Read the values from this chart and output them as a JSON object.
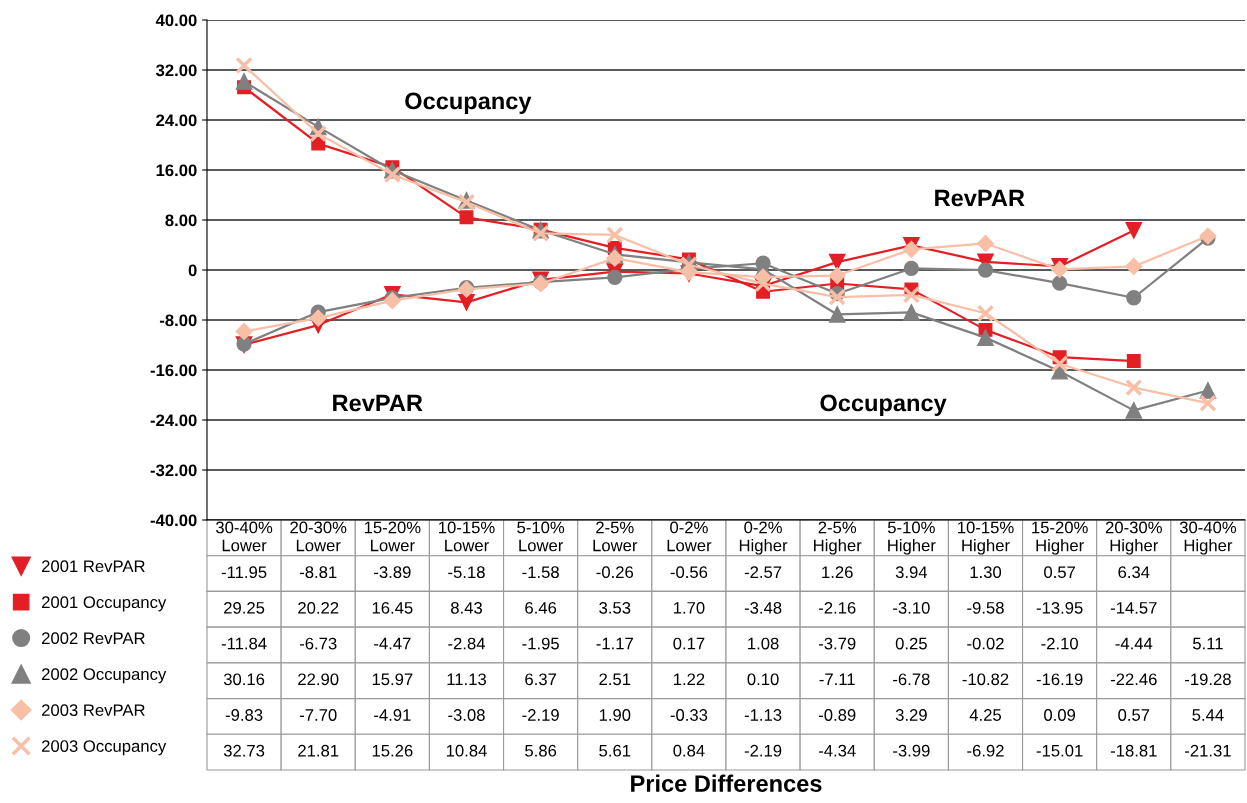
{
  "chart_data": {
    "type": "line",
    "categories": [
      "30-40%\nLower",
      "20-30%\nLower",
      "15-20%\nLower",
      "10-15%\nLower",
      "5-10%\nLower",
      "2-5%\nLower",
      "0-2%\nLower",
      "0-2%\nHigher",
      "2-5%\nHigher",
      "5-10%\nHigher",
      "10-15%\nHigher",
      "15-20%\nHigher",
      "20-30%\nHigher",
      "30-40%\nHigher"
    ],
    "legend": "bottom left",
    "ylim": [
      -40,
      40
    ],
    "yticks": [
      {
        "value": -40,
        "label": "-40.00"
      },
      {
        "value": -32,
        "label": "-32.00"
      },
      {
        "value": -24,
        "label": "-24.00"
      },
      {
        "value": -16,
        "label": "-16.00"
      },
      {
        "value": -8,
        "label": "-8.00"
      },
      {
        "value": 0,
        "label": "0"
      },
      {
        "value": 8,
        "label": "8.00"
      },
      {
        "value": 16,
        "label": "16.00"
      },
      {
        "value": 24,
        "label": "24.00"
      },
      {
        "value": 32,
        "label": "32.00"
      },
      {
        "value": 40,
        "label": "40.00"
      }
    ],
    "grid": "y",
    "annotations": [
      "Occupancy",
      "RevPAR",
      "RevPAR",
      "Occupancy",
      "Price Differences"
    ],
    "series": [
      {
        "name": "2001 RevPAR",
        "color": "#e31e24",
        "marker": "triangle_down",
        "values": [
          -11.95,
          -8.81,
          -3.89,
          -5.18,
          -1.58,
          -0.26,
          -0.56,
          -2.57,
          1.26,
          3.94,
          1.3,
          0.57,
          6.34,
          null
        ],
        "value_labels": [
          "-11.95",
          "-8.81",
          "-3.89",
          "-5.18",
          "-1.58",
          "-0.26",
          "-0.56",
          "-2.57",
          "1.26",
          "3.94",
          "1.30",
          "0.57",
          "6.34",
          null
        ]
      },
      {
        "name": "2001 Occupancy",
        "color": "#e31e24",
        "marker": "square",
        "values": [
          29.25,
          20.22,
          16.45,
          8.43,
          6.46,
          3.53,
          1.7,
          -3.48,
          -2.16,
          -3.1,
          -9.58,
          -13.95,
          -14.57,
          null
        ],
        "value_labels": [
          "29.25",
          "20.22",
          "16.45",
          "8.43",
          "6.46",
          "3.53",
          "1.70",
          "-3.48",
          "-2.16",
          "-3.10",
          "-9.58",
          "-13.95",
          "-14.57",
          null
        ]
      },
      {
        "name": "2002 RevPAR",
        "color": "#808080",
        "marker": "circle",
        "values": [
          -11.84,
          -6.73,
          -4.47,
          -2.84,
          -1.95,
          -1.17,
          0.17,
          1.08,
          -3.79,
          0.25,
          -0.02,
          -2.1,
          -4.44,
          5.11
        ],
        "value_labels": [
          "-11.84",
          "-6.73",
          "-4.47",
          "-2.84",
          "-1.95",
          "-1.17",
          "0.17",
          "1.08",
          "-3.79",
          "0.25",
          "-0.02",
          "-2.10",
          "-4.44",
          "5.11"
        ]
      },
      {
        "name": "2002 Occupancy",
        "color": "#808080",
        "marker": "triangle",
        "values": [
          30.16,
          22.9,
          15.97,
          11.13,
          6.37,
          2.51,
          1.22,
          0.1,
          -7.11,
          -6.78,
          -10.82,
          -16.19,
          -22.46,
          -19.28
        ],
        "value_labels": [
          "30.16",
          "22.90",
          "15.97",
          "11.13",
          "6.37",
          "2.51",
          "1.22",
          "0.10",
          "-7.11",
          "-6.78",
          "-10.82",
          "-16.19",
          "-22.46",
          "-19.28"
        ]
      },
      {
        "name": "2003 RevPAR",
        "color": "#f9bfa6",
        "marker": "diamond",
        "values": [
          -9.83,
          -7.7,
          -4.91,
          -3.08,
          -2.19,
          1.9,
          -0.33,
          -1.13,
          -0.89,
          3.29,
          4.25,
          0.09,
          0.57,
          5.44
        ],
        "value_labels": [
          "-9.83",
          "-7.70",
          "-4.91",
          "-3.08",
          "-2.19",
          "1.90",
          "-0.33",
          "-1.13",
          "-0.89",
          "3.29",
          "4.25",
          "0.09",
          "0.57",
          "5.44"
        ]
      },
      {
        "name": "2003 Occupancy",
        "color": "#f9bfa6",
        "marker": "cross",
        "values": [
          32.73,
          21.81,
          15.26,
          10.84,
          5.86,
          5.61,
          0.84,
          -2.19,
          -4.34,
          -3.99,
          -6.92,
          -15.01,
          -18.81,
          -21.31
        ],
        "value_labels": [
          "32.73",
          "21.81",
          "15.26",
          "10.84",
          "5.86",
          "5.61",
          "0.84",
          "-2.19",
          "-4.34",
          "-3.99",
          "-6.92",
          "-15.01",
          "-18.81",
          "-21.31"
        ]
      }
    ]
  }
}
